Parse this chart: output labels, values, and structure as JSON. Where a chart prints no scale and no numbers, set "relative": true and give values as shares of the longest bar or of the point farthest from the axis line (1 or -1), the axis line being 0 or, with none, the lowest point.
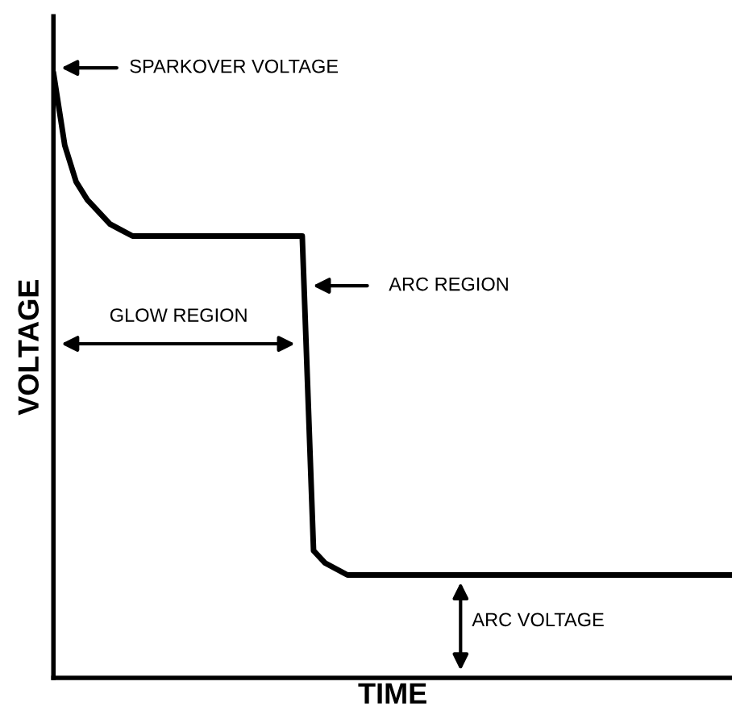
{
  "chart_data": {
    "type": "line",
    "relative": true,
    "xlabel": "TIME",
    "ylabel": "VOLTAGE",
    "categories": [
      null,
      null,
      null,
      null,
      null,
      null,
      null,
      null,
      null,
      null,
      null,
      null,
      null,
      null,
      null,
      null,
      null,
      null,
      null,
      null,
      null,
      null,
      null,
      null,
      null,
      null,
      null,
      null,
      null,
      null,
      null,
      null,
      null,
      null,
      null,
      null,
      null,
      null,
      null,
      null,
      null,
      null,
      null,
      null,
      null,
      null,
      null,
      null,
      null,
      null,
      null,
      null,
      null,
      null,
      null,
      null,
      null,
      null,
      null,
      null,
      null
    ],
    "series": [
      {
        "color": "#000000",
        "values": [
          1.0,
          0.88,
          0.82,
          0.79,
          0.77,
          0.75,
          0.74,
          0.73,
          0.73,
          0.73,
          0.73,
          0.73,
          0.73,
          0.73,
          0.73,
          0.73,
          0.73,
          0.73,
          0.73,
          0.73,
          0.73,
          0.73,
          0.73,
          0.21,
          0.19,
          0.18,
          0.17,
          0.17,
          0.17,
          0.17,
          0.17,
          0.17,
          0.17,
          0.17,
          0.17,
          0.17,
          0.17,
          0.17,
          0.17,
          0.17,
          0.17,
          0.17,
          0.17,
          0.17,
          0.17,
          0.17,
          0.17,
          0.17,
          0.17,
          0.17,
          0.17,
          0.17,
          0.17,
          0.17,
          0.17,
          0.17,
          0.17,
          0.17,
          0.17,
          0.17,
          0.17
        ]
      }
    ],
    "annotations": [
      "SPARKOVER VOLTAGE",
      "ARC REGION",
      "GLOW REGION",
      "ARC VOLTAGE"
    ],
    "marker": "none",
    "line_style": "solid",
    "legend": false
  }
}
